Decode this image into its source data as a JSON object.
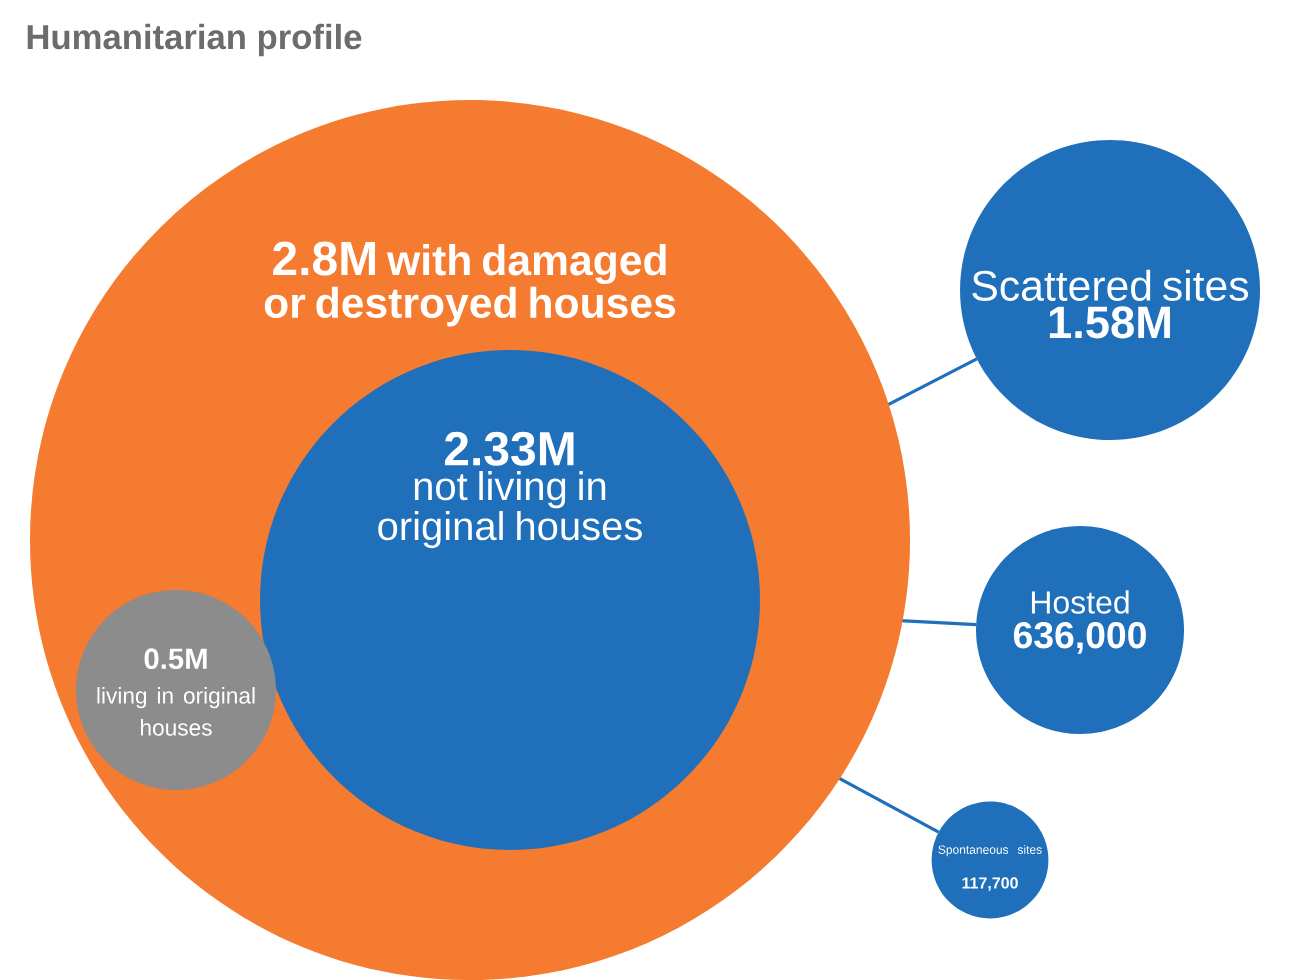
{
  "chart_data": {
    "type": "other",
    "title": "Humanitarian profile",
    "categories": [
      "with damaged or destroyed houses",
      "not living in original houses",
      "living in original houses",
      "Scattered sites",
      "Hosted",
      "Spontaneous sites"
    ],
    "values": [
      2800000,
      2330000,
      500000,
      1580000,
      636000,
      117700
    ],
    "value_labels": [
      "2.8M",
      "2.33M",
      "0.5M",
      "1.58M",
      "636,000",
      "117,700"
    ],
    "colors": [
      "#f47b2f",
      "#1f6fba",
      "#8c8c8c",
      "#1f6fba",
      "#1f6fba",
      "#1f6fba"
    ]
  }
}
